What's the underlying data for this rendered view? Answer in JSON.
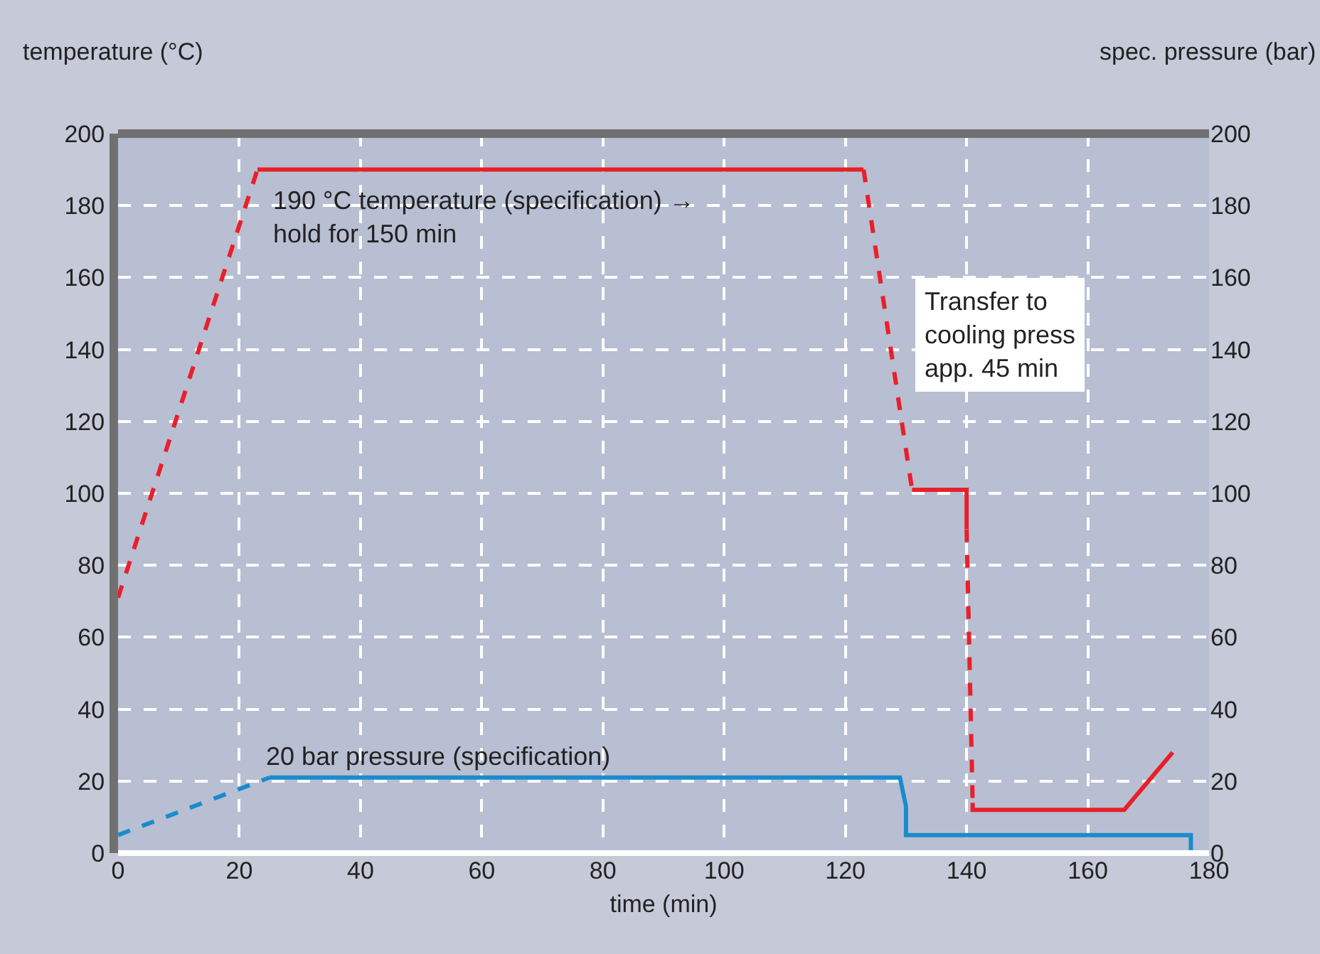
{
  "chart_data": {
    "type": "line",
    "xlabel": "time (min)",
    "ylabel": "temperature (°C)",
    "y2label": "spec. pressure (bar)",
    "xlim": [
      0,
      180
    ],
    "xticks": [
      0,
      20,
      40,
      60,
      80,
      100,
      120,
      140,
      160,
      180
    ],
    "ylim": [
      0,
      200
    ],
    "yticks": [
      0,
      20,
      40,
      60,
      80,
      100,
      120,
      140,
      160,
      180,
      200
    ],
    "y2lim": [
      0,
      200
    ],
    "y2ticks": [
      0,
      20,
      40,
      60,
      80,
      100,
      120,
      140,
      160,
      180,
      200
    ],
    "grid": true,
    "series": [
      {
        "color": "#e8202a",
        "line_style": "dashed",
        "x": [
          0,
          23
        ],
        "values": [
          71,
          190
        ]
      },
      {
        "color": "#e8202a",
        "line_style": "solid",
        "x": [
          23,
          123
        ],
        "values": [
          190,
          190
        ]
      },
      {
        "color": "#e8202a",
        "line_style": "dashed",
        "x": [
          123,
          131
        ],
        "values": [
          190,
          101
        ]
      },
      {
        "color": "#e8202a",
        "line_style": "solid",
        "x": [
          131,
          140,
          140
        ],
        "values": [
          101,
          101,
          90
        ]
      },
      {
        "color": "#e8202a",
        "line_style": "dashed",
        "x": [
          140,
          141
        ],
        "values": [
          90,
          14
        ]
      },
      {
        "color": "#e8202a",
        "line_style": "solid",
        "x": [
          141,
          141,
          166,
          174
        ],
        "values": [
          14,
          12,
          12,
          28
        ]
      },
      {
        "color": "#1a8ccc",
        "line_style": "dashed",
        "axis": "y2",
        "x": [
          0,
          25
        ],
        "values": [
          5,
          21
        ]
      },
      {
        "color": "#1a8ccc",
        "line_style": "solid",
        "axis": "y2",
        "x": [
          25,
          129,
          130,
          130,
          177,
          177
        ],
        "values": [
          21,
          21,
          13,
          5,
          5,
          0
        ]
      }
    ],
    "annotations": [
      "190 °C temperature (specification) →\nhold for 150 min",
      "Transfer to\ncooling press\napp. 45 min",
      {
        "text": "20 bar pressure (specification)",
        "x": 24,
        "y": 22
      }
    ]
  }
}
